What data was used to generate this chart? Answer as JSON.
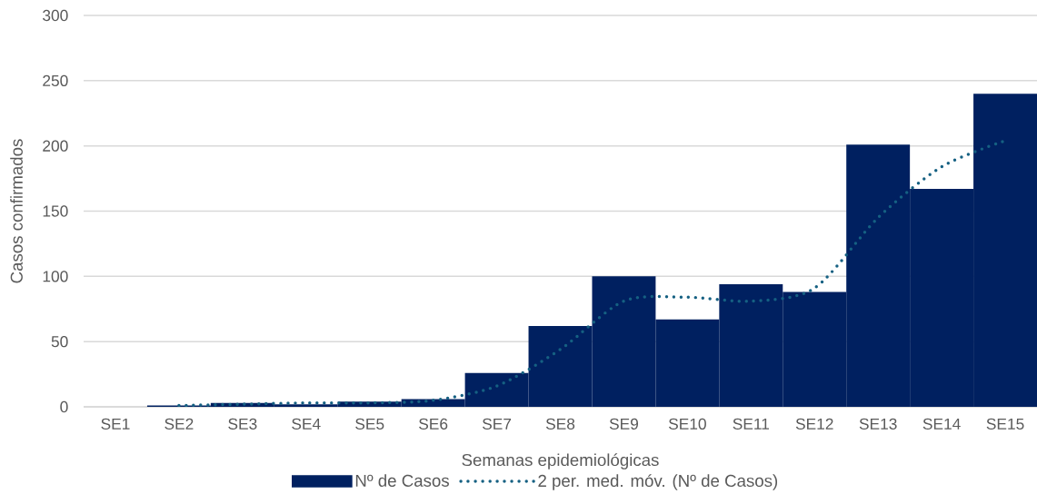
{
  "chart_data": {
    "type": "bar",
    "xlabel": "Semanas epidemiológicas",
    "ylabel": "Casos confirmados",
    "categories": [
      "SE1",
      "SE2",
      "SE3",
      "SE4",
      "SE5",
      "SE6",
      "SE7",
      "SE8",
      "SE9",
      "SE10",
      "SE11",
      "SE12",
      "SE13",
      "SE14",
      "SE15"
    ],
    "series": [
      {
        "name": "Nº de Casos",
        "color": "#002060",
        "values": [
          0,
          1,
          3,
          2,
          4,
          6,
          26,
          62,
          100,
          67,
          94,
          88,
          201,
          167,
          240
        ]
      },
      {
        "name": "2 per. med. móv. (Nº de Casos)",
        "type": "line",
        "color": "#156082",
        "line_style": "dotted",
        "values": [
          null,
          1,
          2,
          3,
          3,
          5,
          16,
          44,
          81,
          84,
          81,
          91,
          145,
          184,
          204
        ]
      }
    ],
    "ylim": [
      0,
      300
    ],
    "yticks": [
      0,
      50,
      100,
      150,
      200,
      250,
      300
    ],
    "grid": "y",
    "legend": "bottom"
  }
}
